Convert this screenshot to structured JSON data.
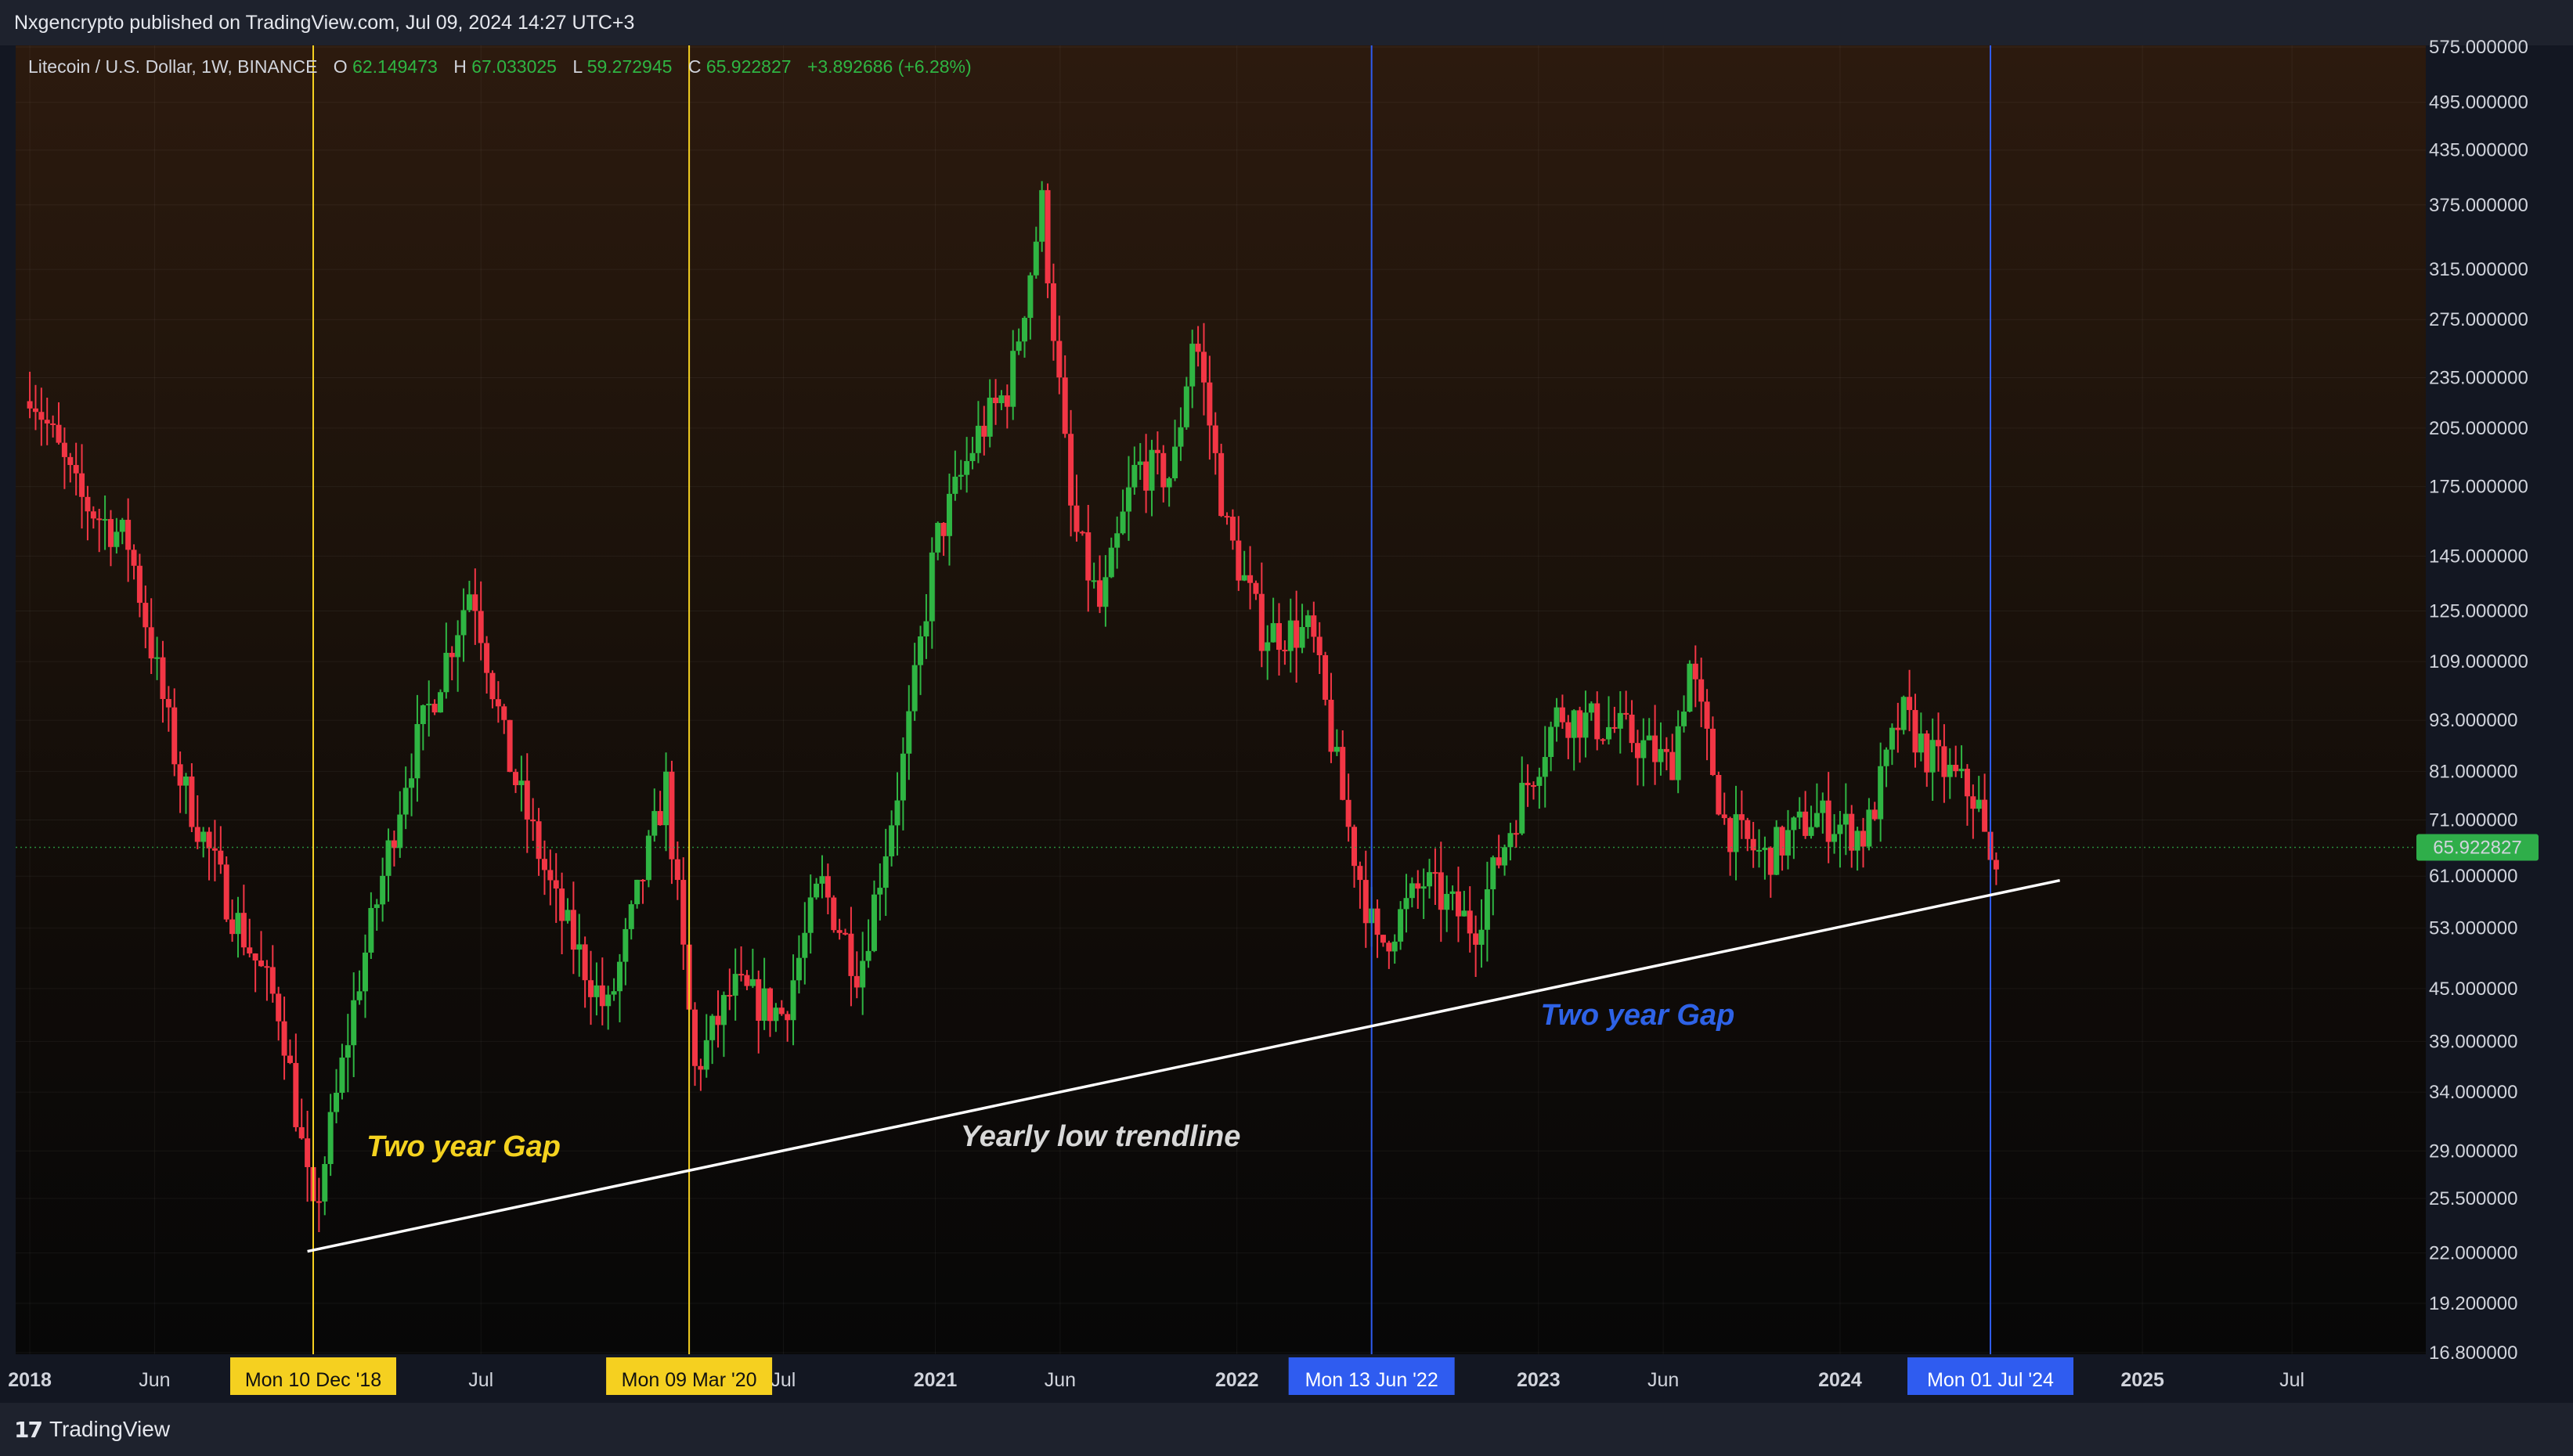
{
  "header": {
    "published_text": "Nxgencrypto published on TradingView.com, Jul 09, 2024 14:27 UTC+3"
  },
  "legend": {
    "symbol": "Litecoin / U.S. Dollar, 1W, BINANCE",
    "open_label": "O",
    "open": "62.149473",
    "high_label": "H",
    "high": "67.033025",
    "low_label": "L",
    "low": "59.272945",
    "close_label": "C",
    "close": "65.922827",
    "change": "+3.892686 (+6.28%)"
  },
  "footer": {
    "brand": "TradingView"
  },
  "colors": {
    "up": "#22ab94",
    "up_bright": "#2fb543",
    "down": "#f23645",
    "yellow": "#f5d020",
    "blue_marker": "#2f5cf0",
    "blue_text": "#2e62e6",
    "price_tag": "#2fae4a",
    "trendline": "#ffffff"
  },
  "chart_data": {
    "type": "candlestick",
    "interval": "1W",
    "exchange": "BINANCE",
    "pair": "LTC/USD",
    "y_scale": "log",
    "ylim": [
      16.8,
      575
    ],
    "xlim": [
      "2017-12-25",
      "2025-10-06"
    ],
    "y_ticks": [
      "575.000000",
      "495.000000",
      "435.000000",
      "375.000000",
      "315.000000",
      "275.000000",
      "235.000000",
      "205.000000",
      "175.000000",
      "145.000000",
      "125.000000",
      "109.000000",
      "93.000000",
      "81.000000",
      "71.000000",
      "61.000000",
      "53.000000",
      "45.000000",
      "39.000000",
      "34.000000",
      "29.000000",
      "25.500000",
      "22.000000",
      "19.200000",
      "16.800000"
    ],
    "x_ticks": [
      {
        "label": "2018",
        "date": "2018-01-01",
        "bold": true
      },
      {
        "label": "Jun",
        "date": "2018-06-01",
        "bold": false
      },
      {
        "label": "Jul",
        "date": "2019-07-01",
        "bold": false
      },
      {
        "label": "Jul",
        "date": "2020-07-01",
        "bold": false
      },
      {
        "label": "2021",
        "date": "2021-01-01",
        "bold": true
      },
      {
        "label": "Jun",
        "date": "2021-06-01",
        "bold": false
      },
      {
        "label": "2022",
        "date": "2022-01-01",
        "bold": true
      },
      {
        "label": "2023",
        "date": "2023-01-01",
        "bold": true
      },
      {
        "label": "Jun",
        "date": "2023-06-01",
        "bold": false
      },
      {
        "label": "2024",
        "date": "2024-01-01",
        "bold": true
      },
      {
        "label": "2025",
        "date": "2025-01-01",
        "bold": true
      },
      {
        "label": "Jul",
        "date": "2025-07-01",
        "bold": false
      }
    ],
    "vertical_markers": [
      {
        "label": "Mon 10 Dec '18",
        "date": "2018-12-10",
        "color": "yellow"
      },
      {
        "label": "Mon 09 Mar '20",
        "date": "2020-03-09",
        "color": "yellow"
      },
      {
        "label": "Mon 13 Jun '22",
        "date": "2022-06-13",
        "color": "blue"
      },
      {
        "label": "Mon 01 Jul '24",
        "date": "2024-07-01",
        "color": "blue"
      }
    ],
    "current_price": "65.922827",
    "trendline": {
      "start": {
        "date": "2018-12-03",
        "price": 22.1
      },
      "end": {
        "date": "2024-09-23",
        "price": 60.3
      }
    },
    "annotations": [
      {
        "text": "Two year Gap",
        "color": "yellow",
        "date": "2019-06-10",
        "price": 28.6
      },
      {
        "text": "Yearly low trendline",
        "color": "white",
        "date": "2021-07-20",
        "price": 29.4
      },
      {
        "text": "Two year Gap",
        "color": "blue",
        "date": "2023-05-01",
        "price": 40.8
      }
    ],
    "key_points": [
      {
        "date": "2018-01-01",
        "price": 230
      },
      {
        "date": "2018-03-01",
        "price": 170
      },
      {
        "date": "2018-05-01",
        "price": 150
      },
      {
        "date": "2018-07-01",
        "price": 80
      },
      {
        "date": "2018-09-01",
        "price": 56
      },
      {
        "date": "2018-11-01",
        "price": 42
      },
      {
        "date": "2018-12-10",
        "price": 24
      },
      {
        "date": "2019-02-01",
        "price": 45
      },
      {
        "date": "2019-04-01",
        "price": 80
      },
      {
        "date": "2019-06-20",
        "price": 135
      },
      {
        "date": "2019-08-01",
        "price": 85
      },
      {
        "date": "2019-10-01",
        "price": 56
      },
      {
        "date": "2019-12-01",
        "price": 42
      },
      {
        "date": "2020-02-10",
        "price": 78
      },
      {
        "date": "2020-03-16",
        "price": 36
      },
      {
        "date": "2020-05-01",
        "price": 45
      },
      {
        "date": "2020-07-01",
        "price": 42
      },
      {
        "date": "2020-08-15",
        "price": 60
      },
      {
        "date": "2020-10-01",
        "price": 47
      },
      {
        "date": "2020-11-25",
        "price": 85
      },
      {
        "date": "2021-01-01",
        "price": 150
      },
      {
        "date": "2021-02-20",
        "price": 200
      },
      {
        "date": "2021-04-01",
        "price": 230
      },
      {
        "date": "2021-05-10",
        "price": 375
      },
      {
        "date": "2021-06-15",
        "price": 160
      },
      {
        "date": "2021-07-20",
        "price": 125
      },
      {
        "date": "2021-09-01",
        "price": 185
      },
      {
        "date": "2021-10-15",
        "price": 180
      },
      {
        "date": "2021-11-10",
        "price": 270
      },
      {
        "date": "2021-12-20",
        "price": 155
      },
      {
        "date": "2022-02-01",
        "price": 118
      },
      {
        "date": "2022-04-01",
        "price": 118
      },
      {
        "date": "2022-05-15",
        "price": 70
      },
      {
        "date": "2022-06-20",
        "price": 50
      },
      {
        "date": "2022-08-15",
        "price": 60
      },
      {
        "date": "2022-10-15",
        "price": 53
      },
      {
        "date": "2022-12-10",
        "price": 75
      },
      {
        "date": "2023-01-25",
        "price": 95
      },
      {
        "date": "2023-04-15",
        "price": 90
      },
      {
        "date": "2023-06-10",
        "price": 82
      },
      {
        "date": "2023-07-03",
        "price": 108
      },
      {
        "date": "2023-08-15",
        "price": 70
      },
      {
        "date": "2023-10-01",
        "price": 64
      },
      {
        "date": "2023-12-01",
        "price": 72
      },
      {
        "date": "2024-02-01",
        "price": 68
      },
      {
        "date": "2024-03-15",
        "price": 95
      },
      {
        "date": "2024-04-15",
        "price": 85
      },
      {
        "date": "2024-06-15",
        "price": 75
      },
      {
        "date": "2024-07-01",
        "price": 62
      },
      {
        "date": "2024-07-08",
        "price": 65.9
      }
    ]
  }
}
